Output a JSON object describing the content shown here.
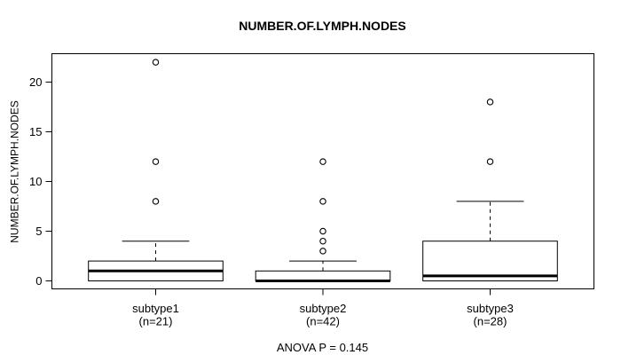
{
  "chart_data": {
    "type": "boxplot",
    "title": "NUMBER.OF.LYMPH.NODES",
    "ylabel": "NUMBER.OF.LYMPH.NODES",
    "xlabel": "",
    "ylim": [
      0,
      22
    ],
    "yticks": [
      0,
      5,
      10,
      15,
      20
    ],
    "grid": false,
    "annotation": "ANOVA P = 0.145",
    "groups": [
      {
        "label": "subtype1",
        "sublabel": "(n=21)",
        "n": 21,
        "q1": 0,
        "median": 1,
        "q3": 2,
        "whisker_low": 0,
        "whisker_high": 4,
        "outliers": [
          8,
          12,
          22
        ]
      },
      {
        "label": "subtype2",
        "sublabel": "(n=42)",
        "n": 42,
        "q1": 0,
        "median": 0,
        "q3": 1,
        "whisker_low": 0,
        "whisker_high": 2,
        "outliers": [
          3,
          4,
          5,
          8,
          12
        ]
      },
      {
        "label": "subtype3",
        "sublabel": "(n=28)",
        "n": 28,
        "q1": 0,
        "median": 0.5,
        "q3": 4,
        "whisker_low": 0,
        "whisker_high": 8,
        "outliers": [
          12,
          18
        ]
      }
    ]
  },
  "colors": {
    "stroke": "#000000",
    "box_fill": "#ffffff",
    "background": "#ffffff"
  }
}
